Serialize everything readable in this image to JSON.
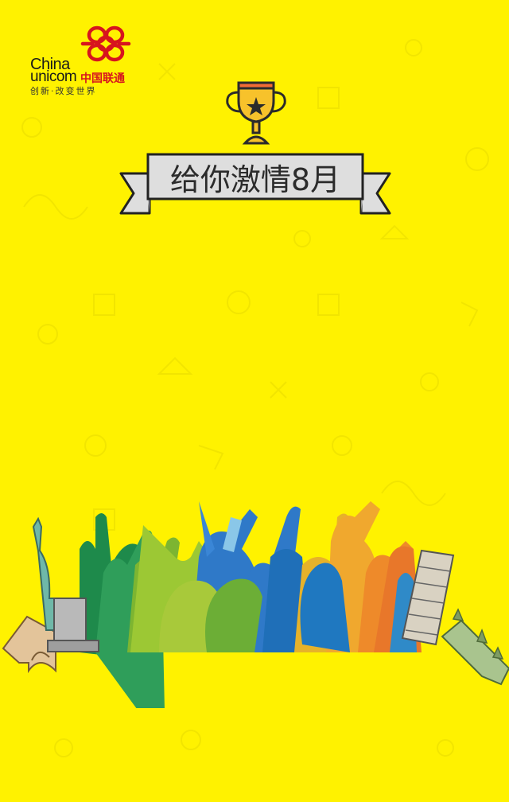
{
  "brand": {
    "name_en_line1": "China",
    "name_en_line2": "unicom",
    "name_cn": "中国联通",
    "slogan": "创新·改变世界",
    "logo_color": "#D7141E"
  },
  "banner": {
    "title": "给你激情8月"
  },
  "icons": {
    "top": "trophy-star-icon",
    "background": "sports-doodle-pattern",
    "illustration": "crowd-landmarks-illustration"
  },
  "colors": {
    "background": "#FFF200",
    "ribbon_fill": "#DEDEDE",
    "ribbon_stroke": "#222222",
    "trophy_gold": "#F7C22B",
    "trophy_band": "#F26B35"
  }
}
